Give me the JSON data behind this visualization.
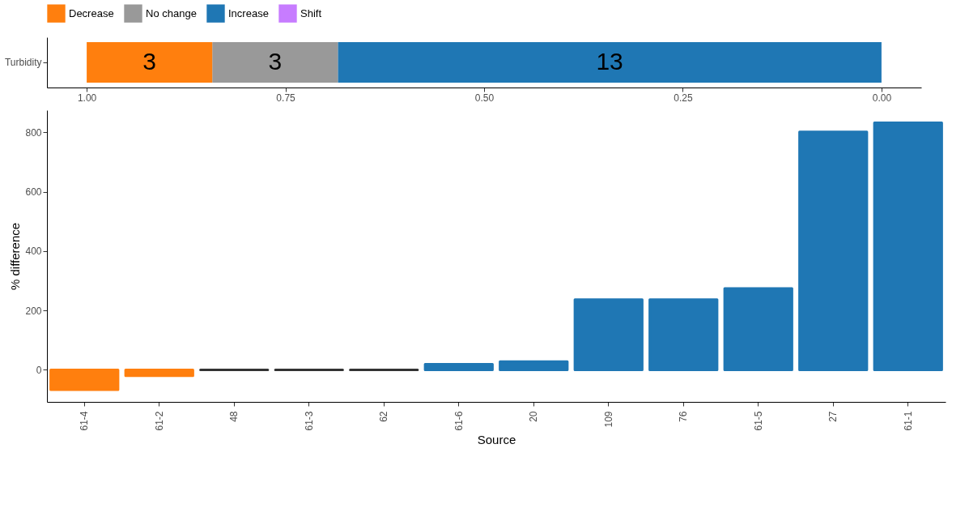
{
  "chart_data": [
    {
      "type": "bar",
      "orientation": "horizontal",
      "stacked": true,
      "categories": [
        "Turbidity"
      ],
      "legend": "top",
      "series": [
        {
          "name": "Increase",
          "color": "#1f77b4",
          "values": [
            0.684
          ]
        },
        {
          "name": "No change",
          "color": "#999999",
          "values": [
            0.158
          ]
        },
        {
          "name": "Decrease",
          "color": "#ff7f0e",
          "values": [
            0.158
          ]
        },
        {
          "name": "Shift",
          "color": "#c77cff",
          "values": [
            null
          ]
        }
      ],
      "annotations": [
        "13",
        "3",
        "3"
      ],
      "xlim": [
        1.05,
        -0.05
      ],
      "xticks": [
        {
          "value": 1,
          "label": "1.00"
        },
        {
          "value": 0.75,
          "label": "0.75"
        },
        {
          "value": 0.5,
          "label": "0.50"
        },
        {
          "value": 0.25,
          "label": "0.25"
        },
        {
          "value": 0,
          "label": "0.00"
        }
      ],
      "grid": false
    },
    {
      "type": "bar",
      "xlabel": "Source",
      "ylabel": "% difference",
      "categories": [
        "61-4",
        "61-2",
        "48",
        "61-3",
        "62",
        "61-6",
        "20",
        "109",
        "76",
        "61-5",
        "27",
        "61-1"
      ],
      "values": [
        -67,
        -20,
        0,
        0,
        0,
        19,
        28,
        237,
        237,
        274,
        802,
        833
      ],
      "colors": [
        "#ff7f0e",
        "#ff7f0e",
        "#333333",
        "#333333",
        "#333333",
        "#1f77b4",
        "#1f77b4",
        "#1f77b4",
        "#1f77b4",
        "#1f77b4",
        "#1f77b4",
        "#1f77b4"
      ],
      "ylim": [
        -108,
        875
      ],
      "yticks": [
        0,
        200,
        400,
        600,
        800
      ],
      "grid": false
    }
  ]
}
